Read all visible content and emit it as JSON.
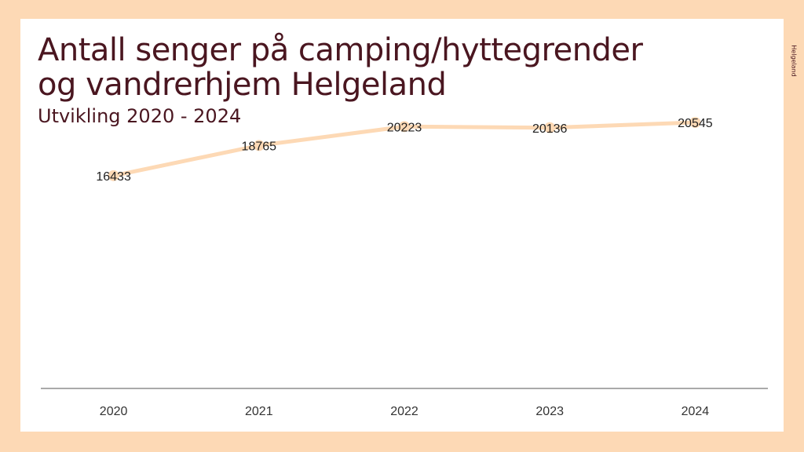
{
  "header": {
    "title": "Antall senger på camping/hyttegrender og vandrerhjem Helgeland",
    "subtitle": "Utvikling 2020 - 2024"
  },
  "logo": {
    "text": "Helgeland"
  },
  "colors": {
    "line": "#fdd9b5",
    "text": "#4a1620",
    "axis": "#555555"
  },
  "chart_data": {
    "type": "line",
    "categories": [
      "2020",
      "2021",
      "2022",
      "2023",
      "2024"
    ],
    "series": [
      {
        "values": [
          16433,
          18765,
          20223,
          20136,
          20545
        ]
      }
    ],
    "data_labels": [
      "16433",
      "18765",
      "20223",
      "20136",
      "20545"
    ],
    "ylim": [
      0,
      30000
    ],
    "grid": false,
    "legend": "none"
  }
}
